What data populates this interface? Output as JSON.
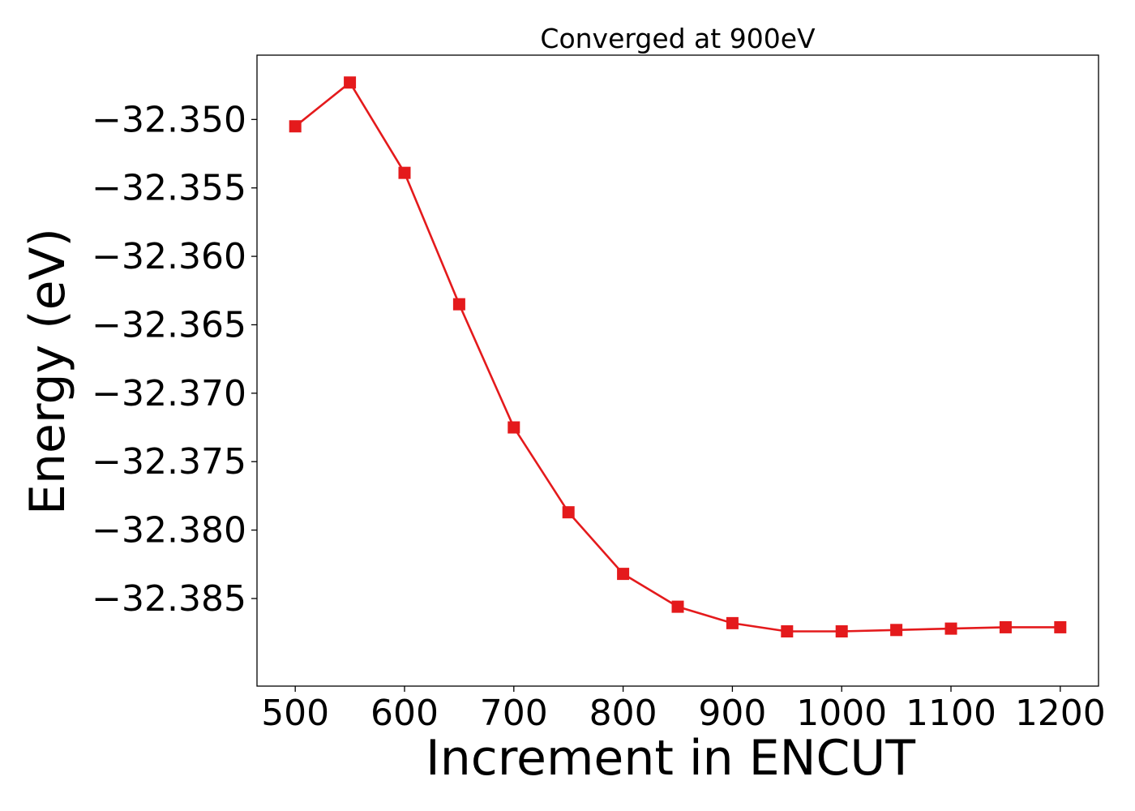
{
  "chart_data": {
    "type": "line",
    "title": "Converged at 900eV",
    "xlabel": "Increment in ENCUT",
    "ylabel": "Energy (eV)",
    "x": [
      500,
      550,
      600,
      650,
      700,
      750,
      800,
      850,
      900,
      950,
      1000,
      1050,
      1100,
      1150,
      1200
    ],
    "series": [
      {
        "values": [
          -32.3505,
          -32.3473,
          -32.3539,
          -32.3635,
          -32.3725,
          -32.3787,
          -32.3832,
          -32.3856,
          -32.3868,
          -32.3874,
          -32.3874,
          -32.3873,
          -32.3872,
          -32.3871,
          -32.3871
        ],
        "color": "#e41a1c",
        "marker": "square"
      }
    ],
    "xlim": [
      465,
      1235
    ],
    "ylim": [
      -32.3914,
      -32.3453
    ],
    "xticks": [
      500,
      600,
      700,
      800,
      900,
      1000,
      1100,
      1200
    ],
    "xtick_labels": [
      "500",
      "600",
      "700",
      "800",
      "900",
      "1000",
      "1100",
      "1200"
    ],
    "yticks": [
      -32.35,
      -32.355,
      -32.36,
      -32.365,
      -32.37,
      -32.375,
      -32.38,
      -32.385
    ],
    "ytick_labels": [
      "−32.350",
      "−32.355",
      "−32.360",
      "−32.365",
      "−32.370",
      "−32.375",
      "−32.380",
      "−32.385"
    ],
    "grid": false,
    "legend": false
  }
}
